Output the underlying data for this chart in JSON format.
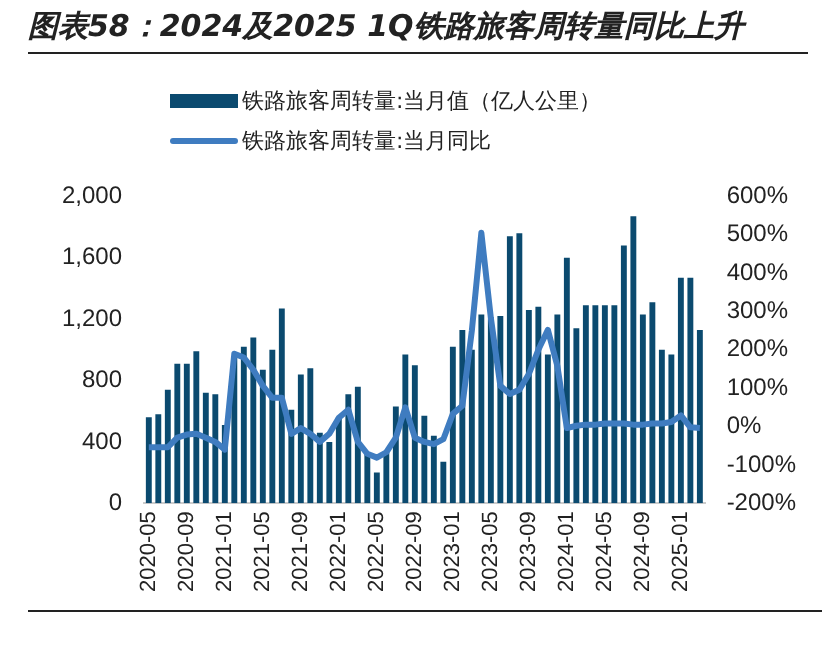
{
  "chart_data": {
    "type": "bar",
    "title": "图表58：2024及2025 1Q铁路旅客周转量同比上升",
    "categories": [
      "2020-05",
      null,
      null,
      null,
      "2020-09",
      null,
      null,
      null,
      "2021-01",
      null,
      null,
      null,
      "2021-05",
      null,
      null,
      null,
      "2021-09",
      null,
      null,
      null,
      "2022-01",
      null,
      null,
      null,
      "2022-05",
      null,
      null,
      null,
      "2022-09",
      null,
      null,
      null,
      "2023-01",
      null,
      null,
      null,
      "2023-05",
      null,
      null,
      null,
      "2023-09",
      null,
      null,
      null,
      "2024-01",
      null,
      null,
      null,
      "2024-05",
      null,
      null,
      null,
      "2024-09",
      null,
      null,
      null,
      "2025-01",
      null,
      null
    ],
    "series": [
      {
        "name": "铁路旅客周转量:当月值（亿人公里）",
        "color": "#0b4a6f",
        "values": [
          560,
          580,
          740,
          910,
          910,
          990,
          720,
          710,
          510,
          960,
          1020,
          1080,
          870,
          1000,
          1270,
          610,
          840,
          880,
          460,
          400,
          560,
          710,
          760,
          320,
          200,
          330,
          630,
          970,
          900,
          570,
          440,
          270,
          1020,
          1130,
          1000,
          1230,
          1200,
          1220,
          1740,
          1760,
          1260,
          1280,
          970,
          1230,
          1600,
          1140,
          1290,
          1290,
          1290,
          1290,
          1680,
          1870,
          1230,
          1310,
          1000,
          970,
          1470,
          1470,
          1130
        ]
      },
      {
        "name": "铁路旅客周转量:当月同比",
        "type": "line",
        "axis": "y2",
        "color": "#3f7cc0",
        "values": [
          -54,
          -54,
          -54,
          -29,
          -21,
          -19,
          -29,
          -40,
          -60,
          190,
          180,
          148,
          106,
          75,
          75,
          -19,
          -4,
          -19,
          -40,
          -19,
          23,
          44,
          -40,
          -71,
          -81,
          -67,
          -29,
          50,
          -29,
          -40,
          -46,
          -33,
          33,
          54,
          250,
          505,
          283,
          106,
          85,
          96,
          137,
          200,
          252,
          158,
          -4,
          2,
          5,
          5,
          8,
          8,
          8,
          5,
          5,
          8,
          8,
          12,
          29,
          -2,
          -4
        ]
      }
    ],
    "ylim": [
      0,
      2000
    ],
    "yticks": [
      0,
      400,
      800,
      {
        "value": 1200,
        "label": "1,200"
      },
      {
        "value": 1600,
        "label": "1,600"
      },
      {
        "value": 2000,
        "label": "2,000"
      }
    ],
    "y2lim": [
      -200,
      600
    ],
    "y2ticks": [
      {
        "value": -200,
        "label": "-200%"
      },
      {
        "value": -100,
        "label": "-100%"
      },
      {
        "value": 0,
        "label": "0%"
      },
      {
        "value": 100,
        "label": "100%"
      },
      {
        "value": 200,
        "label": "200%"
      },
      {
        "value": 300,
        "label": "300%"
      },
      {
        "value": 400,
        "label": "400%"
      },
      {
        "value": 500,
        "label": "500%"
      },
      {
        "value": 600,
        "label": "600%"
      }
    ],
    "legend": "top",
    "marker": "none"
  }
}
